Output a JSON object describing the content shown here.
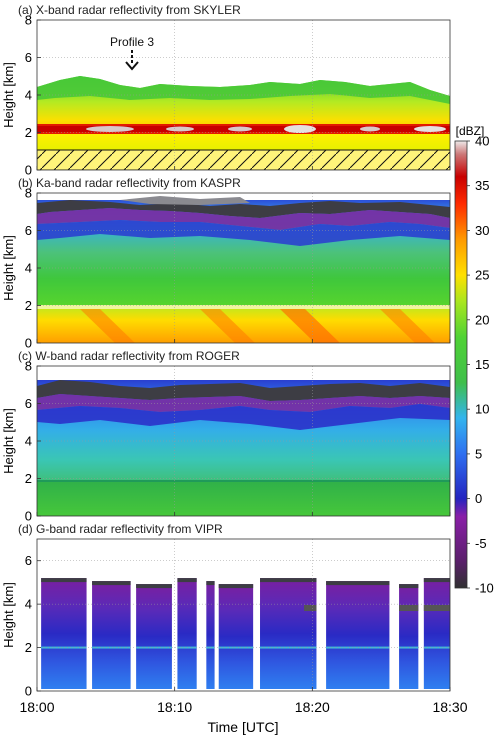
{
  "figure": {
    "height_label": "Height [km]",
    "xlabel": "Time [UTC]",
    "x_ticks": [
      "18:00",
      "18:10",
      "18:20",
      "18:30"
    ],
    "colorbar": {
      "unit": "[dBZ]",
      "ticks": [
        "40",
        "35",
        "30",
        "25",
        "20",
        "15",
        "10",
        "5",
        "0",
        "-5",
        "-10"
      ],
      "colors": [
        "#3b3b3b",
        "#5e1f6e",
        "#8a1fa8",
        "#2e2ec8",
        "#2f6ff0",
        "#33b5ee",
        "#3fbf4a",
        "#4fd235",
        "#a8e61f",
        "#ffe000",
        "#ff9a00",
        "#ff3300",
        "#cc0000",
        "#cc6f6f",
        "#e8e0e0"
      ]
    },
    "annotation": "Profile 3"
  },
  "chart_data": [
    {
      "type": "heatmap",
      "title": "(a) X-band radar reflectivity from SKYLER",
      "ylabel": "Height [km]",
      "xlabel": "Time [UTC]",
      "xlim": [
        "18:00",
        "18:30"
      ],
      "ylim": [
        0,
        8
      ],
      "y_ticks": [
        0,
        2,
        4,
        6,
        8
      ],
      "color_range_dBZ": [
        -10,
        40
      ],
      "cloud_top_km": 4.5,
      "bright_band_km": 2.0,
      "masked_layer_km": [
        0,
        1
      ],
      "annotation": "Profile 3",
      "annotation_time": "18:06"
    },
    {
      "type": "heatmap",
      "title": "(b) Ka-band radar reflectivity from KASPR",
      "ylabel": "Height [km]",
      "xlabel": "Time [UTC]",
      "xlim": [
        "18:00",
        "18:30"
      ],
      "ylim": [
        0,
        8
      ],
      "y_ticks": [
        0,
        2,
        4,
        6,
        8
      ],
      "color_range_dBZ": [
        -10,
        40
      ],
      "cloud_top_km": 7.0,
      "melting_level_km": 2.0
    },
    {
      "type": "heatmap",
      "title": "(c) W-band radar reflectivity from ROGER",
      "ylabel": "Height [km]",
      "xlabel": "Time [UTC]",
      "xlim": [
        "18:00",
        "18:30"
      ],
      "ylim": [
        0,
        8
      ],
      "y_ticks": [
        0,
        2,
        4,
        6,
        8
      ],
      "color_range_dBZ": [
        -10,
        40
      ],
      "cloud_top_km": 6.8,
      "melting_level_km": 2.0
    },
    {
      "type": "heatmap",
      "title": "(d) G-band radar reflectivity from VIPR",
      "ylabel": "Height [km]",
      "xlabel": "Time [UTC]",
      "xlim": [
        "18:00",
        "18:30"
      ],
      "ylim": [
        0,
        7
      ],
      "y_ticks": [
        0,
        2,
        4,
        6
      ],
      "color_range_dBZ": [
        -10,
        40
      ],
      "cloud_top_km": 5.2,
      "data_segments_minutes": [
        [
          0.3,
          3.6
        ],
        [
          4.0,
          6.8
        ],
        [
          7.2,
          9.8
        ],
        [
          10.2,
          11.6
        ],
        [
          12.3,
          12.9
        ],
        [
          13.2,
          15.7
        ],
        [
          16.2,
          20.3
        ],
        [
          21.0,
          25.6
        ],
        [
          26.3,
          27.7
        ],
        [
          28.1,
          30.0
        ]
      ]
    }
  ]
}
